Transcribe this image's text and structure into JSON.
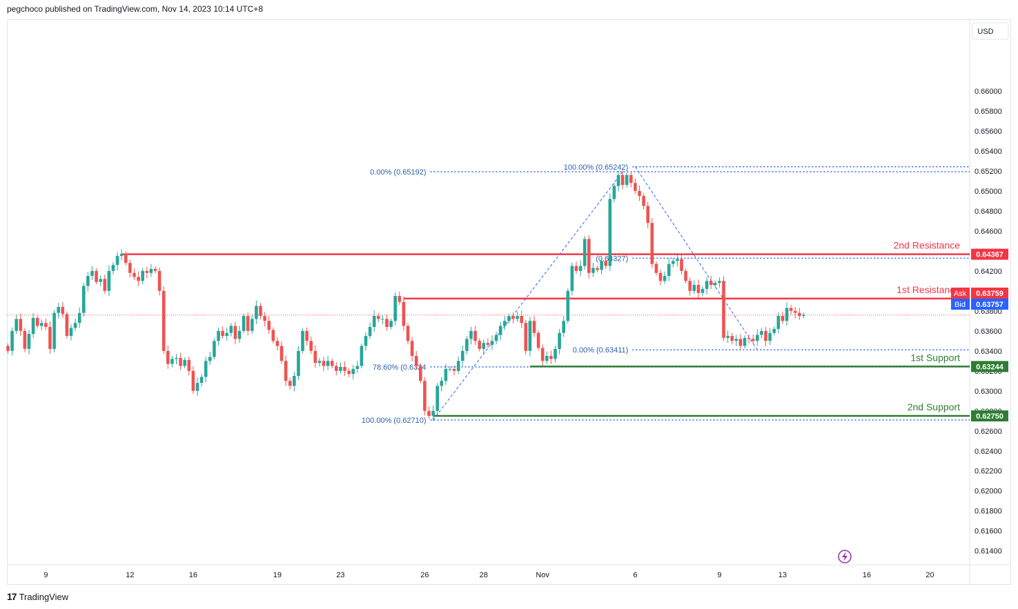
{
  "header": {
    "publisher_line": "pegchoco published on TradingView.com, Nov 14, 2023 10:14 UTC+8"
  },
  "brand": {
    "logo": "17",
    "name": "TradingView"
  },
  "colors": {
    "up": "#26a69a",
    "down": "#ef5350",
    "resistance": "#f23645",
    "support": "#2e7d32",
    "fib": "#2962ff",
    "fibText": "#2a5ea8",
    "ask": "#f23645",
    "bid": "#2962ff",
    "bolt": "#9c27b0"
  },
  "chart_data": {
    "type": "candlestick",
    "currency": "USD",
    "ylim": [
      0.6126,
      0.6671
    ],
    "y_ticks": [
      "0.66000",
      "0.65800",
      "0.65600",
      "0.65400",
      "0.65200",
      "0.65000",
      "0.64800",
      "0.64600",
      "0.64400",
      "0.64200",
      "0.64000",
      "0.63800",
      "0.63600",
      "0.63400",
      "0.63200",
      "0.63000",
      "0.62800",
      "0.62600",
      "0.62400",
      "0.62200",
      "0.62000",
      "0.61800",
      "0.61600",
      "0.61400"
    ],
    "x_ticks": [
      {
        "label": "9",
        "bar": 9
      },
      {
        "label": "12",
        "bar": 29
      },
      {
        "label": "16",
        "bar": 44
      },
      {
        "label": "19",
        "bar": 64
      },
      {
        "label": "23",
        "bar": 79
      },
      {
        "label": "26",
        "bar": 99
      },
      {
        "label": "28",
        "bar": 113
      },
      {
        "label": "Nov",
        "bar": 127
      },
      {
        "label": "6",
        "bar": 149
      },
      {
        "label": "9",
        "bar": 169
      },
      {
        "label": "13",
        "bar": 184
      },
      {
        "label": "16",
        "bar": 204
      },
      {
        "label": "20",
        "bar": 219
      }
    ],
    "closes": [
      0.634,
      0.636,
      0.6372,
      0.636,
      0.6342,
      0.6357,
      0.6373,
      0.6365,
      0.6368,
      0.6364,
      0.6342,
      0.6378,
      0.6384,
      0.6377,
      0.6355,
      0.6363,
      0.6368,
      0.6378,
      0.6405,
      0.6415,
      0.642,
      0.6409,
      0.6412,
      0.64,
      0.642,
      0.6426,
      0.6435,
      0.6437,
      0.6428,
      0.6418,
      0.6414,
      0.641,
      0.642,
      0.6418,
      0.6422,
      0.642,
      0.64,
      0.634,
      0.6327,
      0.6332,
      0.6333,
      0.6325,
      0.6331,
      0.632,
      0.63,
      0.6308,
      0.6314,
      0.633,
      0.6334,
      0.635,
      0.636,
      0.6355,
      0.6358,
      0.6365,
      0.6352,
      0.636,
      0.6375,
      0.636,
      0.6372,
      0.6385,
      0.6375,
      0.637,
      0.6361,
      0.635,
      0.6345,
      0.633,
      0.631,
      0.6305,
      0.6315,
      0.634,
      0.636,
      0.635,
      0.634,
      0.6328,
      0.633,
      0.6325,
      0.633,
      0.6325,
      0.632,
      0.6324,
      0.632,
      0.6317,
      0.6322,
      0.6325,
      0.6345,
      0.6355,
      0.6364,
      0.6375,
      0.6372,
      0.6372,
      0.6364,
      0.637,
      0.6395,
      0.6389,
      0.6365,
      0.635,
      0.6335,
      0.6325,
      0.631,
      0.628,
      0.6275,
      0.628,
      0.6305,
      0.631,
      0.6322,
      0.6322,
      0.632,
      0.633,
      0.634,
      0.6352,
      0.636,
      0.635,
      0.6342,
      0.6348,
      0.6346,
      0.635,
      0.6356,
      0.6365,
      0.637,
      0.6375,
      0.6372,
      0.6375,
      0.6368,
      0.634,
      0.637,
      0.6358,
      0.6343,
      0.633,
      0.6335,
      0.6332,
      0.6342,
      0.6358,
      0.637,
      0.64,
      0.6425,
      0.642,
      0.6425,
      0.6452,
      0.6418,
      0.6423,
      0.6421,
      0.643,
      0.6425,
      0.6492,
      0.6505,
      0.6516,
      0.6506,
      0.6516,
      0.6508,
      0.65,
      0.6495,
      0.6485,
      0.6468,
      0.6427,
      0.6418,
      0.641,
      0.6415,
      0.6427,
      0.643,
      0.6432,
      0.642,
      0.641,
      0.64,
      0.6406,
      0.6398,
      0.6402,
      0.641,
      0.6406,
      0.6408,
      0.641,
      0.6353,
      0.6355,
      0.635,
      0.6352,
      0.6345,
      0.6353,
      0.6352,
      0.635,
      0.6356,
      0.636,
      0.635,
      0.6358,
      0.6362,
      0.6375,
      0.637,
      0.6383,
      0.638,
      0.6378,
      0.6375,
      0.6376
    ],
    "current_price": 0.63759,
    "ask": {
      "label": "Ask",
      "value": "0.63759"
    },
    "bid": {
      "label": "Bid",
      "value": "0.63757"
    },
    "levels": [
      {
        "label": "2nd Resistance",
        "value": 0.64367,
        "tag": "0.64367",
        "kind": "resistance",
        "x_start_bar": 27
      },
      {
        "label": "1st Resistance",
        "value": 0.63924,
        "tag": "0.63924",
        "kind": "resistance",
        "x_start_bar": 94
      },
      {
        "label": "1st Support",
        "value": 0.63244,
        "tag": "0.63244",
        "kind": "support",
        "x_start_bar": 124
      },
      {
        "label": "2nd Support",
        "value": 0.6275,
        "tag": "0.62750",
        "kind": "support",
        "x_start_bar": 101
      }
    ],
    "fib_levels": [
      {
        "text": "0.00% (0.65192)",
        "value": 0.65192,
        "label_bar": 85,
        "start_bar": 100
      },
      {
        "text": "78.60% (0.6324",
        "value": 0.6324,
        "label_bar": 85,
        "start_bar": 100
      },
      {
        "text": "100.00% (0.62710)",
        "value": 0.6271,
        "label_bar": 85,
        "start_bar": 100
      },
      {
        "text": "100.00% (0.65242)",
        "value": 0.65242,
        "label_bar": 132,
        "start_bar": 148
      },
      {
        "text": "(0.64327)",
        "value": 0.64327,
        "label_bar": 138,
        "start_bar": 148
      },
      {
        "text": "0.00% (0.63411)",
        "value": 0.63411,
        "label_bar": 134,
        "start_bar": 148
      }
    ],
    "fib_trendlines": [
      {
        "from_bar": 101,
        "from_value": 0.6271,
        "to_bar": 146,
        "to_value": 0.65192
      },
      {
        "from_bar": 149,
        "from_value": 0.65242,
        "to_bar": 178,
        "to_value": 0.63411
      }
    ]
  }
}
